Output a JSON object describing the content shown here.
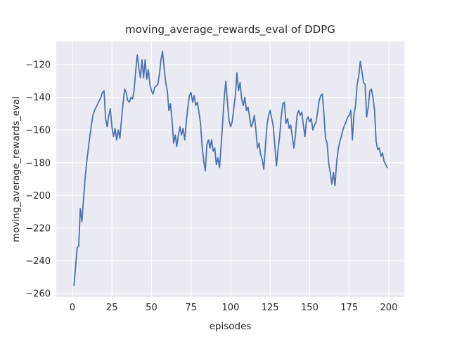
{
  "chart_data": {
    "type": "line",
    "title": "moving_average_rewards_eval of DDPG",
    "xlabel": "episodes",
    "ylabel": "moving_average_rewards_eval",
    "grid": true,
    "legend": "none",
    "plot_background": "#eaeaf2",
    "grid_color": "#ffffff",
    "text_color": "#262626",
    "xlim": [
      -10.2,
      209.8
    ],
    "ylim": [
      -262.1,
      -105.8
    ],
    "xticks": {
      "values": [
        0,
        25,
        50,
        75,
        100,
        125,
        150,
        175,
        200
      ],
      "labels": [
        "0",
        "25",
        "50",
        "75",
        "100",
        "125",
        "150",
        "175",
        "200"
      ]
    },
    "yticks": {
      "values": [
        -260,
        -240,
        -220,
        -200,
        -180,
        -160,
        -140,
        -120
      ],
      "labels": [
        "−260",
        "−240",
        "−220",
        "−200",
        "−180",
        "−160",
        "−140",
        "−120"
      ]
    },
    "series": [
      {
        "name": "moving_average_rewards_eval",
        "color": "#4c72b0",
        "x_start": 1,
        "x_step": 1,
        "y": [
          -255,
          -244,
          -232,
          -231,
          -208,
          -216,
          -203,
          -190,
          -180,
          -172,
          -164,
          -157,
          -151,
          -148,
          -146,
          -144,
          -142,
          -140,
          -137,
          -136,
          -153,
          -158,
          -151,
          -147,
          -158,
          -164,
          -159,
          -166,
          -160,
          -165,
          -154,
          -144,
          -135,
          -137,
          -142,
          -143,
          -140,
          -141,
          -136,
          -124,
          -114,
          -122,
          -128,
          -117,
          -128,
          -117,
          -129,
          -123,
          -132,
          -136,
          -138,
          -134,
          -133,
          -132,
          -126,
          -117,
          -112,
          -122,
          -131,
          -136,
          -148,
          -144,
          -154,
          -168,
          -163,
          -170,
          -163,
          -158,
          -163,
          -159,
          -166,
          -155,
          -146,
          -139,
          -137,
          -143,
          -139,
          -145,
          -143,
          -149,
          -156,
          -170,
          -179,
          -185,
          -169,
          -166,
          -171,
          -166,
          -173,
          -171,
          -181,
          -177,
          -183,
          -170,
          -155,
          -140,
          -130,
          -143,
          -154,
          -158,
          -155,
          -147,
          -139,
          -125,
          -136,
          -131,
          -141,
          -145,
          -140,
          -148,
          -146,
          -152,
          -158,
          -156,
          -151,
          -160,
          -171,
          -168,
          -175,
          -178,
          -184,
          -170,
          -157,
          -151,
          -148,
          -153,
          -158,
          -170,
          -182,
          -172,
          -164,
          -152,
          -144,
          -143,
          -156,
          -153,
          -159,
          -157,
          -164,
          -171,
          -163,
          -151,
          -148,
          -151,
          -149,
          -157,
          -164,
          -154,
          -152,
          -155,
          -153,
          -160,
          -157,
          -155,
          -149,
          -142,
          -139,
          -138,
          -150,
          -165,
          -168,
          -180,
          -186,
          -193,
          -186,
          -194,
          -180,
          -172,
          -167,
          -164,
          -160,
          -157,
          -155,
          -152,
          -151,
          -148,
          -166,
          -150,
          -145,
          -132,
          -127,
          -118,
          -124,
          -131,
          -132,
          -152,
          -146,
          -136,
          -135,
          -140,
          -148,
          -167,
          -172,
          -171,
          -176,
          -174,
          -179,
          -181,
          -183
        ]
      }
    ]
  }
}
